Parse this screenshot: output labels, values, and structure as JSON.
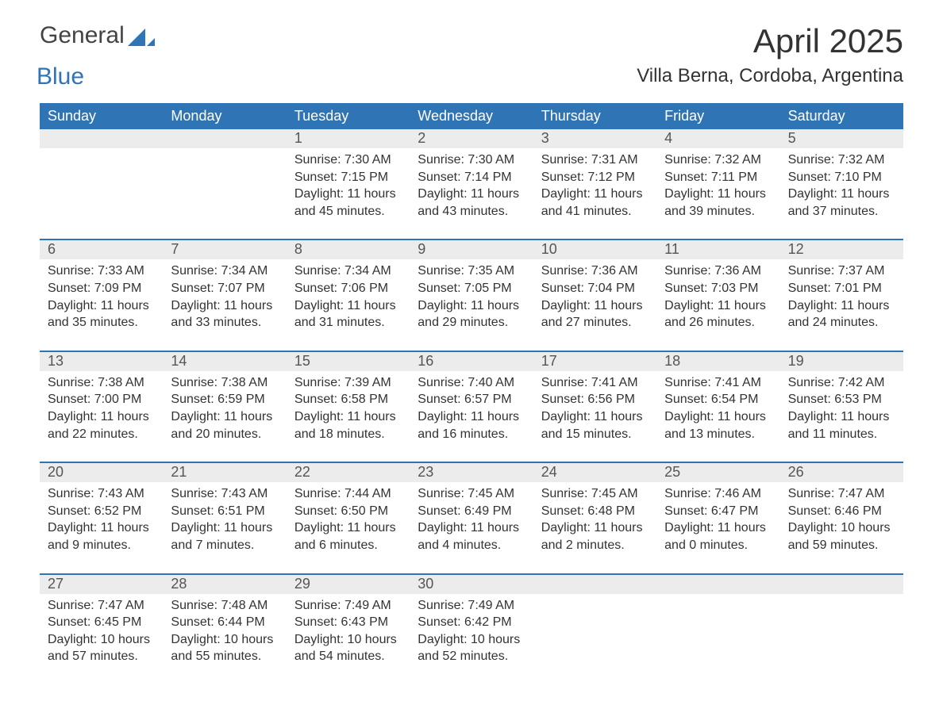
{
  "logo": {
    "part1": "General",
    "part2": "Blue"
  },
  "title": "April 2025",
  "subtitle": "Villa Berna, Cordoba, Argentina",
  "colors": {
    "header_bg": "#2f74b5",
    "header_fg": "#ffffff",
    "daynum_bg": "#ececec",
    "text": "#333333",
    "week_border": "#2f74b5",
    "background": "#ffffff",
    "logo_gray": "#444444",
    "logo_blue": "#2f74b5"
  },
  "typography": {
    "title_fontsize_pt": 32,
    "subtitle_fontsize_pt": 18,
    "header_fontsize_pt": 14,
    "body_fontsize_pt": 12,
    "font_family": "Segoe UI"
  },
  "layout": {
    "columns": 7,
    "rows": 5,
    "aspect_ratio": "1188x918"
  },
  "day_names": [
    "Sunday",
    "Monday",
    "Tuesday",
    "Wednesday",
    "Thursday",
    "Friday",
    "Saturday"
  ],
  "weeks": [
    [
      null,
      null,
      {
        "n": "1",
        "sr": "Sunrise: 7:30 AM",
        "ss": "Sunset: 7:15 PM",
        "d1": "Daylight: 11 hours",
        "d2": "and 45 minutes."
      },
      {
        "n": "2",
        "sr": "Sunrise: 7:30 AM",
        "ss": "Sunset: 7:14 PM",
        "d1": "Daylight: 11 hours",
        "d2": "and 43 minutes."
      },
      {
        "n": "3",
        "sr": "Sunrise: 7:31 AM",
        "ss": "Sunset: 7:12 PM",
        "d1": "Daylight: 11 hours",
        "d2": "and 41 minutes."
      },
      {
        "n": "4",
        "sr": "Sunrise: 7:32 AM",
        "ss": "Sunset: 7:11 PM",
        "d1": "Daylight: 11 hours",
        "d2": "and 39 minutes."
      },
      {
        "n": "5",
        "sr": "Sunrise: 7:32 AM",
        "ss": "Sunset: 7:10 PM",
        "d1": "Daylight: 11 hours",
        "d2": "and 37 minutes."
      }
    ],
    [
      {
        "n": "6",
        "sr": "Sunrise: 7:33 AM",
        "ss": "Sunset: 7:09 PM",
        "d1": "Daylight: 11 hours",
        "d2": "and 35 minutes."
      },
      {
        "n": "7",
        "sr": "Sunrise: 7:34 AM",
        "ss": "Sunset: 7:07 PM",
        "d1": "Daylight: 11 hours",
        "d2": "and 33 minutes."
      },
      {
        "n": "8",
        "sr": "Sunrise: 7:34 AM",
        "ss": "Sunset: 7:06 PM",
        "d1": "Daylight: 11 hours",
        "d2": "and 31 minutes."
      },
      {
        "n": "9",
        "sr": "Sunrise: 7:35 AM",
        "ss": "Sunset: 7:05 PM",
        "d1": "Daylight: 11 hours",
        "d2": "and 29 minutes."
      },
      {
        "n": "10",
        "sr": "Sunrise: 7:36 AM",
        "ss": "Sunset: 7:04 PM",
        "d1": "Daylight: 11 hours",
        "d2": "and 27 minutes."
      },
      {
        "n": "11",
        "sr": "Sunrise: 7:36 AM",
        "ss": "Sunset: 7:03 PM",
        "d1": "Daylight: 11 hours",
        "d2": "and 26 minutes."
      },
      {
        "n": "12",
        "sr": "Sunrise: 7:37 AM",
        "ss": "Sunset: 7:01 PM",
        "d1": "Daylight: 11 hours",
        "d2": "and 24 minutes."
      }
    ],
    [
      {
        "n": "13",
        "sr": "Sunrise: 7:38 AM",
        "ss": "Sunset: 7:00 PM",
        "d1": "Daylight: 11 hours",
        "d2": "and 22 minutes."
      },
      {
        "n": "14",
        "sr": "Sunrise: 7:38 AM",
        "ss": "Sunset: 6:59 PM",
        "d1": "Daylight: 11 hours",
        "d2": "and 20 minutes."
      },
      {
        "n": "15",
        "sr": "Sunrise: 7:39 AM",
        "ss": "Sunset: 6:58 PM",
        "d1": "Daylight: 11 hours",
        "d2": "and 18 minutes."
      },
      {
        "n": "16",
        "sr": "Sunrise: 7:40 AM",
        "ss": "Sunset: 6:57 PM",
        "d1": "Daylight: 11 hours",
        "d2": "and 16 minutes."
      },
      {
        "n": "17",
        "sr": "Sunrise: 7:41 AM",
        "ss": "Sunset: 6:56 PM",
        "d1": "Daylight: 11 hours",
        "d2": "and 15 minutes."
      },
      {
        "n": "18",
        "sr": "Sunrise: 7:41 AM",
        "ss": "Sunset: 6:54 PM",
        "d1": "Daylight: 11 hours",
        "d2": "and 13 minutes."
      },
      {
        "n": "19",
        "sr": "Sunrise: 7:42 AM",
        "ss": "Sunset: 6:53 PM",
        "d1": "Daylight: 11 hours",
        "d2": "and 11 minutes."
      }
    ],
    [
      {
        "n": "20",
        "sr": "Sunrise: 7:43 AM",
        "ss": "Sunset: 6:52 PM",
        "d1": "Daylight: 11 hours",
        "d2": "and 9 minutes."
      },
      {
        "n": "21",
        "sr": "Sunrise: 7:43 AM",
        "ss": "Sunset: 6:51 PM",
        "d1": "Daylight: 11 hours",
        "d2": "and 7 minutes."
      },
      {
        "n": "22",
        "sr": "Sunrise: 7:44 AM",
        "ss": "Sunset: 6:50 PM",
        "d1": "Daylight: 11 hours",
        "d2": "and 6 minutes."
      },
      {
        "n": "23",
        "sr": "Sunrise: 7:45 AM",
        "ss": "Sunset: 6:49 PM",
        "d1": "Daylight: 11 hours",
        "d2": "and 4 minutes."
      },
      {
        "n": "24",
        "sr": "Sunrise: 7:45 AM",
        "ss": "Sunset: 6:48 PM",
        "d1": "Daylight: 11 hours",
        "d2": "and 2 minutes."
      },
      {
        "n": "25",
        "sr": "Sunrise: 7:46 AM",
        "ss": "Sunset: 6:47 PM",
        "d1": "Daylight: 11 hours",
        "d2": "and 0 minutes."
      },
      {
        "n": "26",
        "sr": "Sunrise: 7:47 AM",
        "ss": "Sunset: 6:46 PM",
        "d1": "Daylight: 10 hours",
        "d2": "and 59 minutes."
      }
    ],
    [
      {
        "n": "27",
        "sr": "Sunrise: 7:47 AM",
        "ss": "Sunset: 6:45 PM",
        "d1": "Daylight: 10 hours",
        "d2": "and 57 minutes."
      },
      {
        "n": "28",
        "sr": "Sunrise: 7:48 AM",
        "ss": "Sunset: 6:44 PM",
        "d1": "Daylight: 10 hours",
        "d2": "and 55 minutes."
      },
      {
        "n": "29",
        "sr": "Sunrise: 7:49 AM",
        "ss": "Sunset: 6:43 PM",
        "d1": "Daylight: 10 hours",
        "d2": "and 54 minutes."
      },
      {
        "n": "30",
        "sr": "Sunrise: 7:49 AM",
        "ss": "Sunset: 6:42 PM",
        "d1": "Daylight: 10 hours",
        "d2": "and 52 minutes."
      },
      null,
      null,
      null
    ]
  ]
}
